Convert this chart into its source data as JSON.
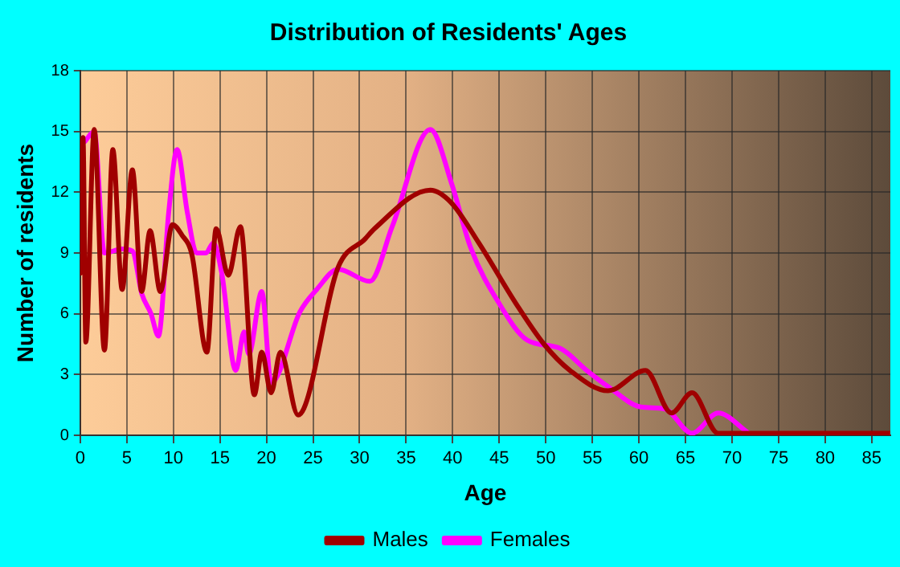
{
  "chart_data": {
    "type": "line",
    "title": "Distribution of Residents' Ages",
    "xlabel": "Age",
    "ylabel": "Number of residents",
    "xlim": [
      0,
      87
    ],
    "xticks": [
      0,
      5,
      10,
      15,
      20,
      25,
      30,
      35,
      40,
      45,
      50,
      55,
      60,
      65,
      70,
      75,
      80,
      85
    ],
    "ylim": [
      0,
      18
    ],
    "yticks": [
      0,
      3,
      6,
      9,
      12,
      15,
      18
    ],
    "grid": true,
    "legend": "bottom",
    "marker": "none",
    "line_style": "solid",
    "series": [
      {
        "name": "Males",
        "color": "#a00000",
        "x": [
          0,
          0.3,
          0.6,
          1.5,
          2.6,
          3.5,
          4.5,
          5.6,
          6.6,
          7.5,
          8.6,
          9.9,
          10.9,
          12,
          13.6,
          14.6,
          15.9,
          17.2,
          18.7,
          19.5,
          20.5,
          21.5,
          23.4,
          27.7,
          30.6,
          31.6,
          37.6,
          39.8,
          42.8,
          46.8,
          49.8,
          52.6,
          56.7,
          60.7,
          63.5,
          65.7,
          68.5,
          72,
          80,
          87
        ],
        "values": [
          8,
          14.7,
          4.6,
          15.1,
          4.2,
          14.1,
          7.2,
          13.1,
          7.1,
          10.1,
          7.1,
          10.4,
          9.9,
          8.9,
          4.1,
          10.2,
          7.9,
          10.3,
          2,
          4.1,
          2.1,
          4.1,
          1,
          8.3,
          9.7,
          10.2,
          12.1,
          11.5,
          9.5,
          6.5,
          4.5,
          3.2,
          2.2,
          3.2,
          1.1,
          2.1,
          0.1,
          0.1,
          0.1,
          0.1
        ]
      },
      {
        "name": "Females",
        "color": "#ff00ff",
        "x": [
          0.5,
          1.5,
          2.6,
          4.5,
          5.6,
          6.6,
          7.6,
          8.4,
          9.5,
          10.4,
          11.5,
          12.5,
          13.5,
          14.3,
          15.2,
          16.7,
          17.6,
          18.1,
          19.5,
          20.5,
          23.6,
          25.4,
          27.7,
          31.1,
          33.5,
          37.6,
          39.9,
          41.9,
          45,
          48,
          51.5,
          54.4,
          56.7,
          60.2,
          62.8,
          65.7,
          68.5,
          71.8
        ],
        "values": [
          14.5,
          15,
          9,
          9.2,
          9.1,
          7,
          6,
          4.9,
          11,
          14.1,
          11,
          9,
          9,
          9.5,
          8,
          3.2,
          5.1,
          4,
          7.1,
          2.6,
          6.1,
          7.2,
          8.2,
          7.6,
          10.3,
          15.1,
          12.4,
          9.3,
          6.5,
          4.7,
          4.3,
          3.2,
          2.4,
          1.4,
          1.3,
          0.1,
          1.1,
          0.1
        ]
      }
    ]
  }
}
